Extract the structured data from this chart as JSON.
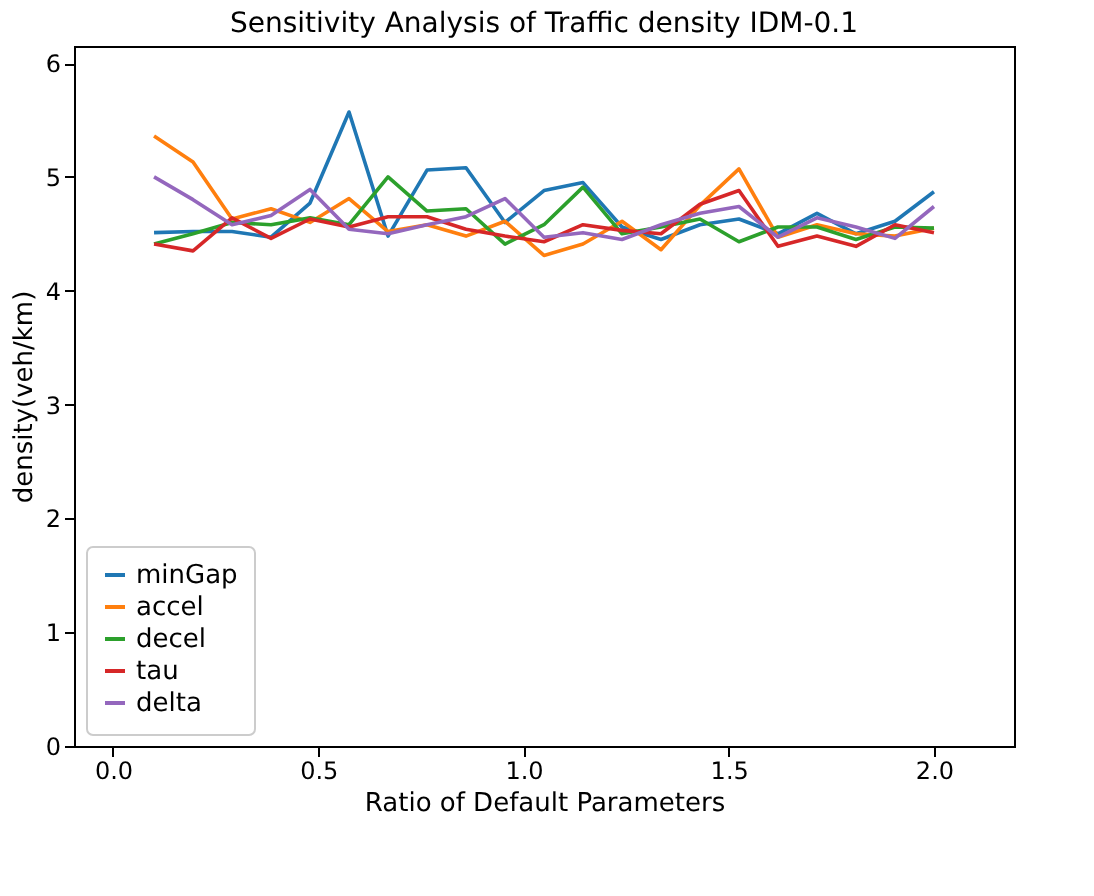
{
  "chart_data": {
    "type": "line",
    "title": "Sensitivity Analysis of Traffic density IDM-0.1",
    "xlabel": "Ratio of Default Parameters",
    "ylabel": "density(veh/km)",
    "x": [
      0.1,
      0.195,
      0.29,
      0.385,
      0.48,
      0.575,
      0.67,
      0.765,
      0.86,
      0.955,
      1.05,
      1.145,
      1.24,
      1.335,
      1.43,
      1.525,
      1.62,
      1.715,
      1.81,
      1.905,
      2.0
    ],
    "series": [
      {
        "name": "minGap",
        "color": "#1f77b4",
        "values": [
          4.51,
          4.52,
          4.52,
          4.47,
          4.77,
          5.57,
          4.48,
          5.06,
          5.08,
          4.6,
          4.88,
          4.95,
          4.56,
          4.45,
          4.58,
          4.63,
          4.5,
          4.68,
          4.5,
          4.61,
          4.87
        ]
      },
      {
        "name": "accel",
        "color": "#ff7f0e",
        "values": [
          5.36,
          5.13,
          4.63,
          4.72,
          4.6,
          4.81,
          4.52,
          4.58,
          4.48,
          4.61,
          4.31,
          4.41,
          4.61,
          4.36,
          4.75,
          5.07,
          4.47,
          4.58,
          4.5,
          4.48,
          4.55
        ]
      },
      {
        "name": "decel",
        "color": "#2ca02c",
        "values": [
          4.41,
          4.5,
          4.6,
          4.58,
          4.64,
          4.58,
          5.0,
          4.7,
          4.72,
          4.41,
          4.58,
          4.91,
          4.5,
          4.56,
          4.63,
          4.43,
          4.56,
          4.56,
          4.45,
          4.56,
          4.55
        ]
      },
      {
        "name": "tau",
        "color": "#d62728",
        "values": [
          4.41,
          4.35,
          4.64,
          4.46,
          4.63,
          4.56,
          4.65,
          4.65,
          4.54,
          4.48,
          4.43,
          4.58,
          4.53,
          4.5,
          4.76,
          4.88,
          4.39,
          4.48,
          4.39,
          4.58,
          4.51
        ]
      },
      {
        "name": "delta",
        "color": "#9467bd",
        "values": [
          5.0,
          4.8,
          4.58,
          4.66,
          4.89,
          4.54,
          4.5,
          4.58,
          4.65,
          4.81,
          4.47,
          4.51,
          4.45,
          4.58,
          4.68,
          4.74,
          4.47,
          4.64,
          4.56,
          4.46,
          4.74
        ]
      }
    ],
    "xlim": [
      -0.095,
      2.195
    ],
    "ylim": [
      0,
      6.15
    ],
    "xticks": [
      {
        "value": 0,
        "label": "0.0"
      },
      0.5,
      {
        "value": 1,
        "label": "1.0"
      },
      1.5,
      {
        "value": 2,
        "label": "2.0"
      }
    ],
    "yticks": [
      0,
      1,
      2,
      3,
      4,
      5,
      6
    ],
    "grid": false,
    "legend": "bottom left",
    "marker": "none",
    "line_style": "solid"
  }
}
